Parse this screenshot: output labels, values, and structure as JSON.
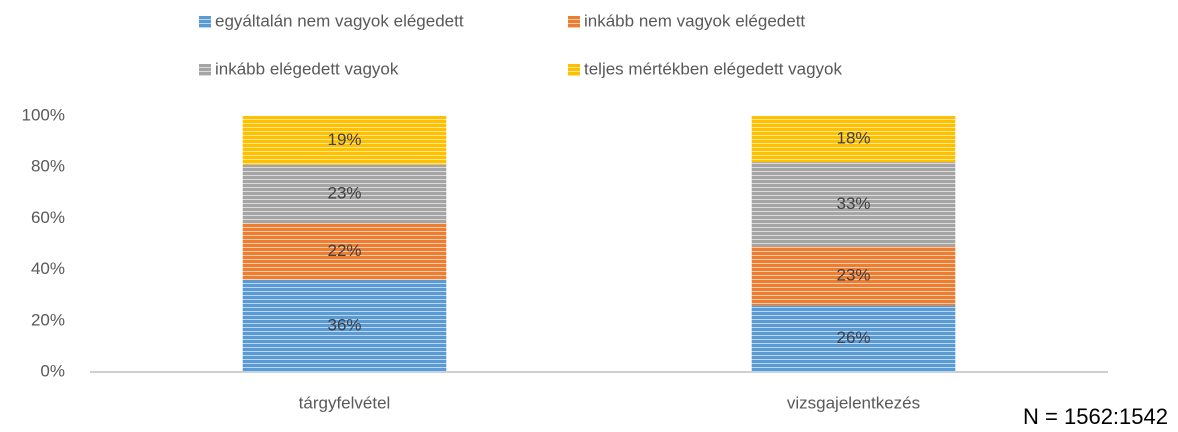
{
  "chart_data": {
    "type": "stacked_bar",
    "categories": [
      "tárgyfelvétel",
      "vizsgajelentkezés"
    ],
    "series": [
      {
        "name": "egyáltalán nem vagyok elégedett",
        "color": "#5b9bd5",
        "values": [
          36,
          26
        ],
        "value_labels": [
          "36%",
          "26%"
        ]
      },
      {
        "name": "inkább nem vagyok elégedett",
        "color": "#ed7d31",
        "values": [
          22,
          23
        ],
        "value_labels": [
          "22%",
          "23%"
        ]
      },
      {
        "name": "inkább elégedett vagyok",
        "color": "#a5a5a5",
        "values": [
          23,
          33
        ],
        "value_labels": [
          "23%",
          "33%"
        ]
      },
      {
        "name": "teljes mértékben elégedett vagyok",
        "color": "#ffc000",
        "values": [
          19,
          18
        ],
        "value_labels": [
          "19%",
          "18%"
        ]
      }
    ],
    "ylim": [
      0,
      100
    ],
    "yticks": [
      {
        "value": 0,
        "label": "0%"
      },
      {
        "value": 20,
        "label": "20%"
      },
      {
        "value": 40,
        "label": "40%"
      },
      {
        "value": 60,
        "label": "60%"
      },
      {
        "value": 80,
        "label": "80%"
      },
      {
        "value": 100,
        "label": "100%"
      }
    ],
    "grid": false,
    "legend": "top",
    "annotation": "N = 1562:1542"
  }
}
